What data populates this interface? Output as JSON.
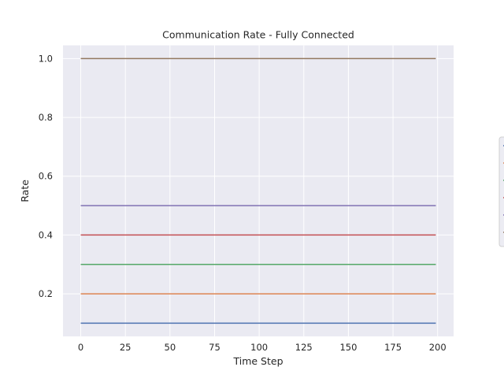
{
  "chart_data": {
    "type": "line",
    "title": "Communication Rate - Fully Connected",
    "xlabel": "Time Step",
    "ylabel": "Rate",
    "xlim": [
      -9.95,
      208.95
    ],
    "ylim": [
      0.055,
      1.045
    ],
    "xticks": [
      0,
      25,
      50,
      75,
      100,
      125,
      150,
      175,
      200
    ],
    "yticks": [
      0.2,
      0.4,
      0.6,
      0.8,
      1.0
    ],
    "ytick_labels": [
      "0.2",
      "0.4",
      "0.6",
      "0.8",
      "1.0"
    ],
    "grid": true,
    "legend": "right-outside",
    "x": [
      0,
      199
    ],
    "series": [
      {
        "values": [
          0.1,
          0.1
        ],
        "color": "#4c72b0"
      },
      {
        "values": [
          0.2,
          0.2
        ],
        "color": "#dd8452"
      },
      {
        "values": [
          0.3,
          0.3
        ],
        "color": "#55a868"
      },
      {
        "values": [
          0.4,
          0.4
        ],
        "color": "#c44e52"
      },
      {
        "values": [
          0.5,
          0.5
        ],
        "color": "#8172b3"
      },
      {
        "values": [
          1.0,
          1.0
        ],
        "color": "#937860"
      }
    ],
    "colors": {
      "background": "#eaeaf2",
      "grid": "#ffffff",
      "text": "#262626"
    }
  }
}
